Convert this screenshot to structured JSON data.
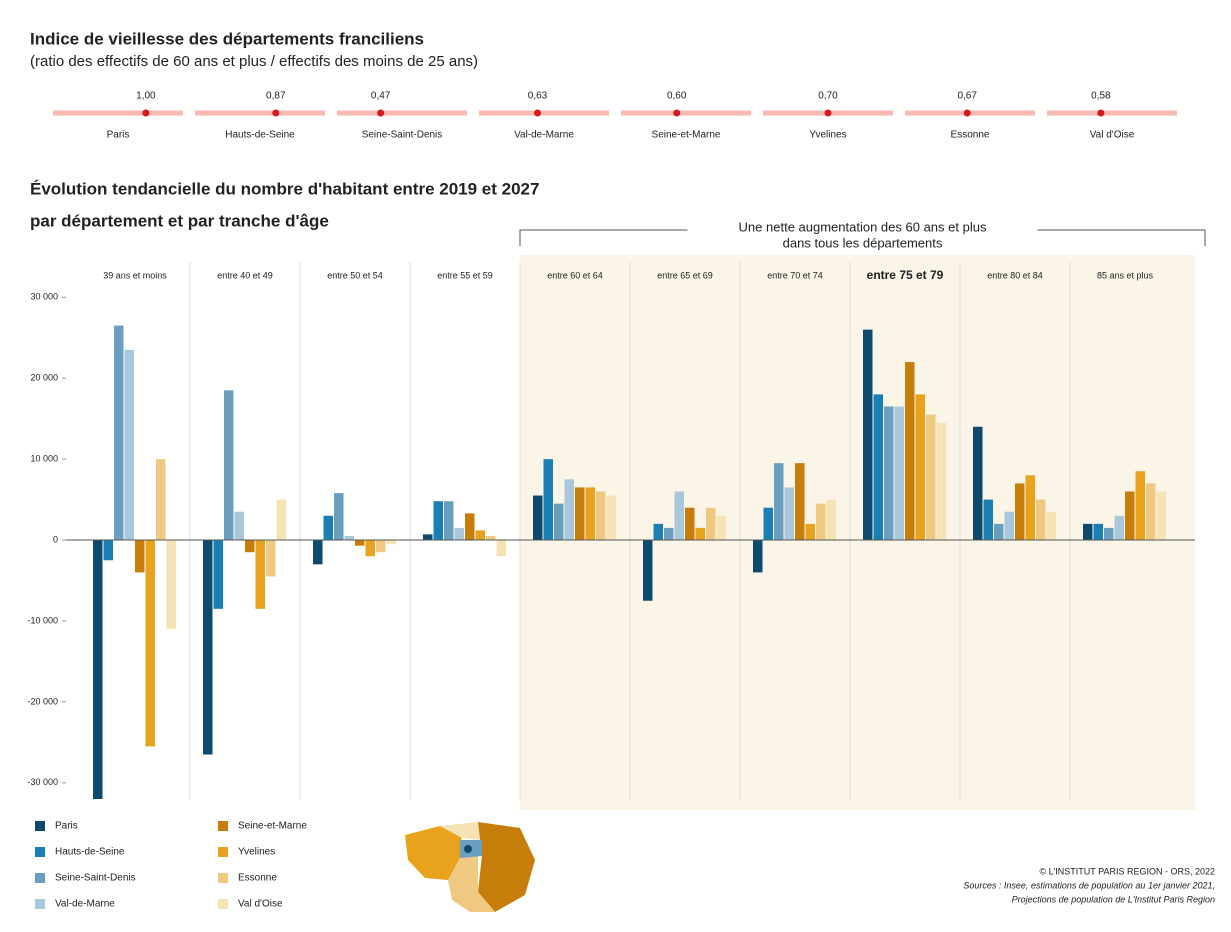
{
  "chart_data": [
    {
      "type": "dot-strip",
      "title": "Indice de vieillesse des départements franciliens",
      "subtitle": "(ratio des effectifs de 60 ans et plus / effectifs des moins de 25 ans)",
      "categories": [
        "Paris",
        "Hauts-de-Seine",
        "Seine-Saint-Denis",
        "Val-de-Marne",
        "Seine-et-Marne",
        "Yvelines",
        "Essonne",
        "Val d'Oise"
      ],
      "values": [
        1.0,
        0.87,
        0.47,
        0.63,
        0.6,
        0.7,
        0.67,
        0.58
      ],
      "value_labels": [
        "1,00",
        "0,87",
        "0,47",
        "0,63",
        "0,60",
        "0,70",
        "0,67",
        "0,58"
      ],
      "xlim": [
        0,
        1.4
      ],
      "color": "#d7191c",
      "track_color": "#f7b9b0"
    },
    {
      "type": "bar",
      "title": "Évolution tendancielle du nombre d'habitant entre 2019 et 2027",
      "subtitle": "par département et par tranche d'âge",
      "annotation": [
        "Une nette augmentation des 60 ans et plus",
        "dans tous les départements"
      ],
      "categories": [
        "39 ans et moins",
        "entre 40 et 49",
        "entre 50 et 54",
        "entre 55 et 59",
        "entre 60 et 64",
        "entre 65 et 69",
        "entre 70 et 74",
        "entre 75 et 79",
        "entre 80 et 84",
        "85 ans et plus"
      ],
      "bold_category": 7,
      "shaded_from": 4,
      "ylim": [
        -32000,
        33000
      ],
      "yticks": [
        {
          "value": 30000,
          "label": "30 000"
        },
        {
          "value": 20000,
          "label": "20 000"
        },
        {
          "value": 10000,
          "label": "10 000"
        },
        0,
        {
          "value": -10000,
          "label": "-10 000"
        },
        {
          "value": -20000,
          "label": "-20 000"
        },
        {
          "value": -30000,
          "label": "-30 000"
        }
      ],
      "series": [
        {
          "name": "Paris",
          "color": "#0d4a6e",
          "values": [
            -32000,
            -26500,
            -3000,
            700,
            5500,
            -7500,
            -4000,
            26000,
            14000,
            2000
          ]
        },
        {
          "name": "Hauts-de-Seine",
          "color": "#1a7fb5",
          "values": [
            -2500,
            -8500,
            3000,
            4800,
            10000,
            2000,
            4000,
            18000,
            5000,
            2000
          ]
        },
        {
          "name": "Seine-Saint-Denis",
          "color": "#6a9fbf",
          "values": [
            26500,
            18500,
            5800,
            4800,
            4500,
            1500,
            9500,
            16500,
            2000,
            1500
          ]
        },
        {
          "name": "Val-de-Marne",
          "color": "#a9c7da",
          "values": [
            23500,
            3500,
            500,
            1500,
            7500,
            6000,
            6500,
            16500,
            3500,
            3000
          ]
        },
        {
          "name": "Seine-et-Marne",
          "color": "#c77d0a",
          "values": [
            -4000,
            -1500,
            -700,
            3300,
            6500,
            4000,
            9500,
            22000,
            7000,
            6000
          ]
        },
        {
          "name": "Yvelines",
          "color": "#e8a21c",
          "values": [
            -25500,
            -8500,
            -2000,
            1200,
            6500,
            1500,
            2000,
            18000,
            8000,
            8500
          ]
        },
        {
          "name": "Essonne",
          "color": "#efc982",
          "values": [
            10000,
            -4500,
            -1500,
            500,
            6000,
            4000,
            4500,
            15500,
            5000,
            7000
          ]
        },
        {
          "name": "Val d'Oise",
          "color": "#f5e3b5",
          "values": [
            -11000,
            5000,
            -500,
            -2000,
            5500,
            3000,
            5000,
            14500,
            3500,
            6000
          ]
        }
      ],
      "source": [
        "© L'INSTITUT PARIS REGION - ORS, 2022",
        "Sources : Insee, estimations de population au 1er janvier 2021,",
        "Projections de population de L'Institut Paris Region"
      ]
    }
  ]
}
